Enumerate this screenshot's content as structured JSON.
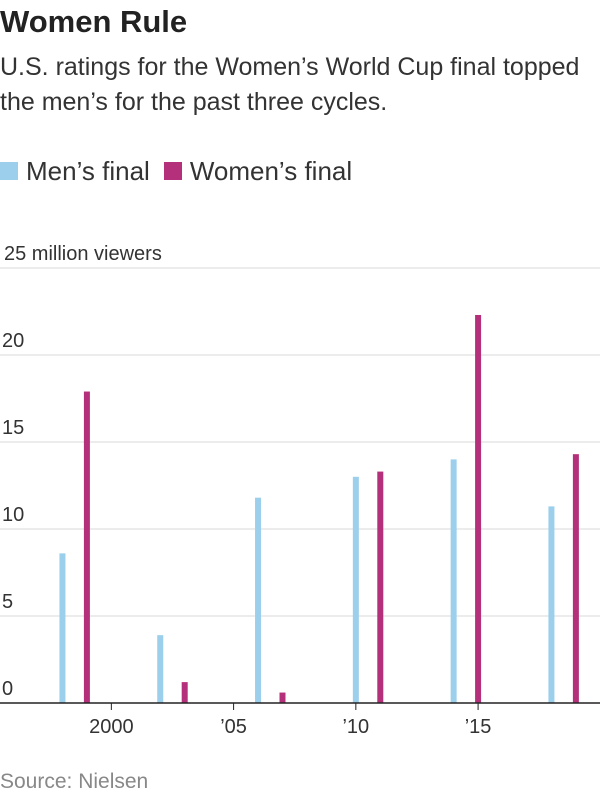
{
  "title": "Women Rule",
  "subtitle": "U.S. ratings for the Women’s World Cup final topped the men’s for the past three cycles.",
  "source": "Source: Nielsen",
  "colors": {
    "men": "#9ccfec",
    "women": "#b5307a",
    "grid": "#d8d8d8",
    "axis": "#222222"
  },
  "legend": [
    {
      "label": "Men’s final",
      "color": "#9ccfec"
    },
    {
      "label": "Women’s final",
      "color": "#b5307a"
    }
  ],
  "chart_data": {
    "type": "bar",
    "ylabel": "25 million viewers",
    "ylim": [
      0,
      25
    ],
    "yticks": [
      {
        "value": 0,
        "label": "0"
      },
      {
        "value": 5,
        "label": "5"
      },
      {
        "value": 10,
        "label": "10"
      },
      {
        "value": 15,
        "label": "15"
      },
      {
        "value": 20,
        "label": "20"
      },
      {
        "value": 25,
        "label": "25 million viewers"
      }
    ],
    "xlim": [
      1997,
      2019.7
    ],
    "xticks": [
      {
        "value": 2000,
        "label": "2000"
      },
      {
        "value": 2005,
        "label": "’05"
      },
      {
        "value": 2010,
        "label": "’10"
      },
      {
        "value": 2015,
        "label": "’15"
      }
    ],
    "series": [
      {
        "name": "Men’s final",
        "color": "#9ccfec",
        "points": [
          {
            "x": 1998,
            "y": 8.6
          },
          {
            "x": 2002,
            "y": 3.9
          },
          {
            "x": 2006,
            "y": 11.8
          },
          {
            "x": 2010,
            "y": 13.0
          },
          {
            "x": 2014,
            "y": 14.0
          },
          {
            "x": 2018,
            "y": 11.3
          }
        ]
      },
      {
        "name": "Women’s final",
        "color": "#b5307a",
        "points": [
          {
            "x": 1999,
            "y": 17.9
          },
          {
            "x": 2003,
            "y": 1.2
          },
          {
            "x": 2007,
            "y": 0.6
          },
          {
            "x": 2011,
            "y": 13.3
          },
          {
            "x": 2015,
            "y": 22.3
          },
          {
            "x": 2019,
            "y": 14.3
          }
        ]
      }
    ]
  }
}
